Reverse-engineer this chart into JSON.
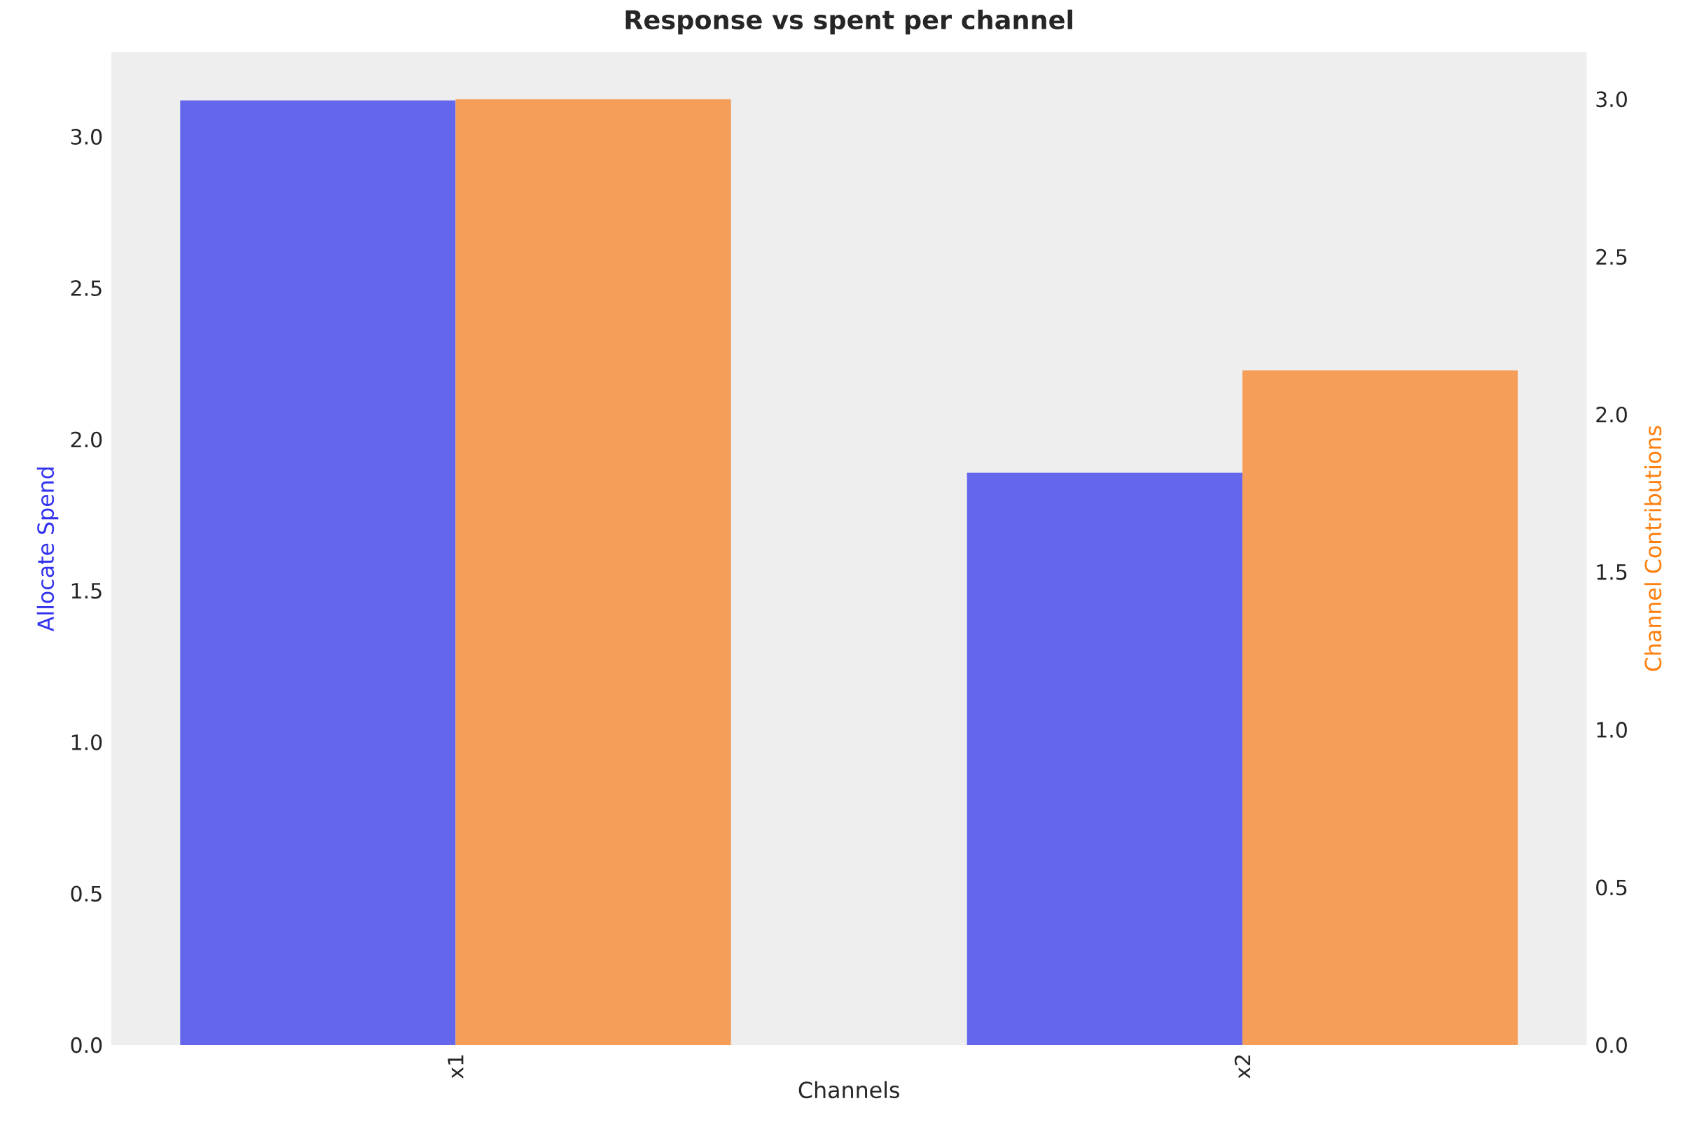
{
  "chart_data": {
    "type": "bar",
    "title": "Response vs spent per channel",
    "xlabel": "Channels",
    "ylabel": "Allocate Spend",
    "y2label": "Channel Contributions",
    "categories": [
      "x1",
      "x2"
    ],
    "series": [
      {
        "color": "#6467ec",
        "values": [
          3.12,
          1.89
        ]
      },
      {
        "color": "#f59e5a",
        "values": [
          3.0,
          2.14
        ],
        "axis": "y2"
      }
    ],
    "ylim": [
      0,
      3.28
    ],
    "yticks": [
      {
        "value": 0,
        "label": "0.0"
      },
      {
        "value": 0.5,
        "label": "0.5"
      },
      {
        "value": 1,
        "label": "1.0"
      },
      {
        "value": 1.5,
        "label": "1.5"
      },
      {
        "value": 2,
        "label": "2.0"
      },
      {
        "value": 2.5,
        "label": "2.5"
      },
      {
        "value": 3,
        "label": "3.0"
      }
    ],
    "y2lim": [
      0,
      3.15
    ],
    "y2ticks": [
      {
        "value": 0,
        "label": "0.0"
      },
      {
        "value": 0.5,
        "label": "0.5"
      },
      {
        "value": 1,
        "label": "1.0"
      },
      {
        "value": 1.5,
        "label": "1.5"
      },
      {
        "value": 2,
        "label": "2.0"
      },
      {
        "value": 2.5,
        "label": "2.5"
      },
      {
        "value": 3,
        "label": "3.0"
      }
    ]
  }
}
